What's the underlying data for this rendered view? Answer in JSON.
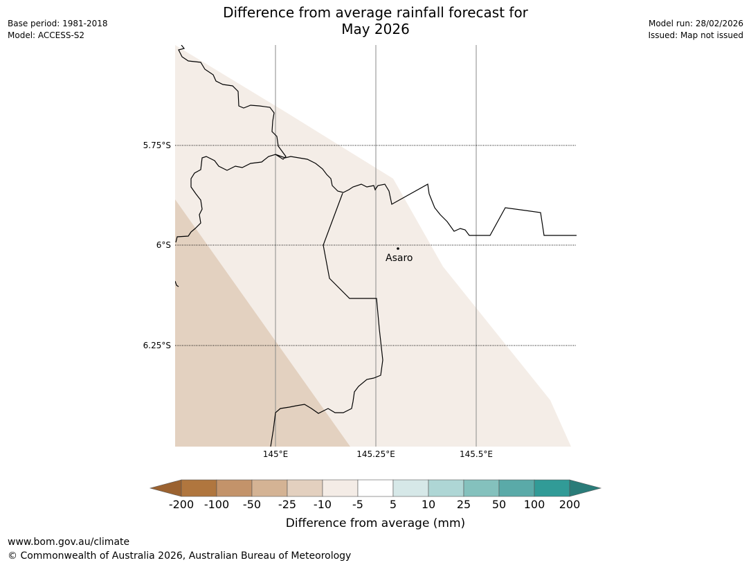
{
  "title_line1": "Difference from average rainfall forecast for",
  "title_line2": "May 2026",
  "base_period": "Base period: 1981-2018",
  "model": "Model: ACCESS-S2",
  "model_run": "Model run: 28/02/2026",
  "issued": "Issued: Map not issued",
  "lat_labels": [
    "5.75°S",
    "6°S",
    "6.25°S"
  ],
  "lon_labels": [
    "145°E",
    "145.25°E",
    "145.5°E"
  ],
  "place": "Asaro",
  "colorbar": {
    "ticks": [
      "-200",
      "-100",
      "-50",
      "-25",
      "-10",
      "-5",
      "5",
      "10",
      "25",
      "50",
      "100",
      "200"
    ],
    "colors": [
      "#9b6230",
      "#b0763e",
      "#c3936a",
      "#d4b394",
      "#e3d0bf",
      "#f4ece6",
      "#ffffff",
      "#d6e8e8",
      "#aed6d5",
      "#84c1bd",
      "#5aaaa8",
      "#319b97",
      "#2a7c79"
    ],
    "label": "Difference from average (mm)"
  },
  "map_colors": {
    "light": "#f4ede7",
    "mid": "#e3d1c0"
  },
  "footer_url": "www.bom.gov.au/climate",
  "footer_copyright": "© Commonwealth of Australia 2026, Australian Bureau of Meteorology"
}
